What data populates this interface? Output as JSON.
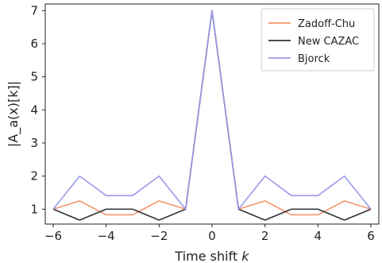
{
  "chart_data": {
    "type": "line",
    "xlabel": "Time shift k",
    "ylabel": "|A_a(x)[k]|",
    "xlim": [
      -6.3,
      6.3
    ],
    "ylim": [
      0.55,
      7.2
    ],
    "xticks": [
      -6,
      -4,
      -2,
      0,
      2,
      4,
      6
    ],
    "xtick_labels": [
      "−6",
      "−4",
      "−2",
      "0",
      "2",
      "4",
      "6"
    ],
    "yticks": [
      1,
      2,
      3,
      4,
      5,
      6,
      7
    ],
    "ytick_labels": [
      "1",
      "2",
      "3",
      "4",
      "5",
      "6",
      "7"
    ],
    "legend_position": "top-right",
    "grid": false,
    "x": [
      -6,
      -5,
      -4,
      -3,
      -2,
      -1,
      0,
      1,
      2,
      3,
      4,
      5,
      6
    ],
    "series": [
      {
        "name": "Zadoff-Chu",
        "color": "#f4956a",
        "values": [
          1.0,
          1.25,
          0.83,
          0.83,
          1.25,
          1.0,
          7.0,
          1.0,
          1.25,
          0.83,
          0.83,
          1.25,
          1.0
        ]
      },
      {
        "name": "New CAZAC",
        "color": "#333333",
        "values": [
          1.0,
          0.67,
          1.0,
          1.0,
          0.67,
          1.0,
          7.0,
          1.0,
          0.67,
          1.0,
          1.0,
          0.67,
          1.0
        ]
      },
      {
        "name": "Bjorck",
        "color": "#9a9aea",
        "values": [
          1.0,
          2.0,
          1.41,
          1.41,
          2.0,
          1.0,
          7.0,
          1.0,
          2.0,
          1.41,
          1.41,
          2.0,
          1.0
        ]
      }
    ]
  }
}
